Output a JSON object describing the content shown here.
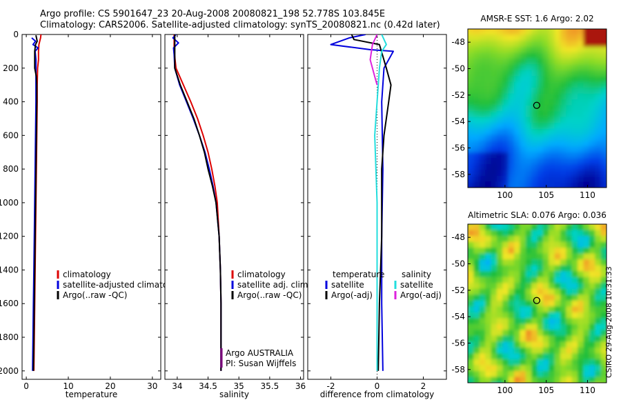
{
  "header": {
    "line1": "Argo profile: CS 5901647_23 20-Aug-2008 20080821_198 52.778S 103.845E",
    "line2": "Climatology: CARS2006. Satellite-adjusted climatology: synTS_20080821.nc (0.42d later)"
  },
  "stamp": "CSIRO 29-Aug-2008 10:31:33",
  "colors": {
    "red": "#dd0000",
    "blue": "#0000dd",
    "black": "#000000",
    "cyan": "#22dddd",
    "magenta": "#dd22dd"
  },
  "chart_data": [
    {
      "id": "temperature",
      "type": "line",
      "xlabel": "temperature",
      "xlim": [
        -1,
        32
      ],
      "xticks": [
        0,
        10,
        20,
        30
      ],
      "ylim": [
        2050,
        0
      ],
      "yticks": [
        0,
        200,
        400,
        600,
        800,
        1000,
        1200,
        1400,
        1600,
        1800,
        2000
      ],
      "legend": [
        "climatology",
        "satellite-adjusted climatology",
        "Argo(..raw -QC)"
      ],
      "legend_loc": "lower-center",
      "series": [
        {
          "name": "climatology",
          "color": "red",
          "points": [
            [
              3.5,
              0
            ],
            [
              3.4,
              20
            ],
            [
              3.0,
              60
            ],
            [
              2.9,
              100
            ],
            [
              2.9,
              150
            ],
            [
              2.7,
              200
            ],
            [
              2.6,
              300
            ],
            [
              2.6,
              400
            ],
            [
              2.5,
              600
            ],
            [
              2.4,
              800
            ],
            [
              2.3,
              1000
            ],
            [
              2.2,
              1200
            ],
            [
              2.1,
              1400
            ],
            [
              2.0,
              1600
            ],
            [
              1.9,
              1800
            ],
            [
              1.8,
              2000
            ]
          ]
        },
        {
          "name": "satellite-adjusted climatology",
          "color": "blue",
          "points": [
            [
              1.3,
              20
            ],
            [
              2.2,
              40
            ],
            [
              1.6,
              60
            ],
            [
              2.8,
              80
            ],
            [
              2.1,
              100
            ],
            [
              2.3,
              150
            ],
            [
              2.3,
              200
            ],
            [
              2.3,
              300
            ],
            [
              2.3,
              400
            ],
            [
              2.2,
              600
            ],
            [
              2.1,
              800
            ],
            [
              2.0,
              1000
            ],
            [
              1.9,
              1200
            ],
            [
              1.8,
              1400
            ],
            [
              1.7,
              1600
            ],
            [
              1.6,
              1800
            ],
            [
              1.5,
              2000
            ]
          ]
        },
        {
          "name": "Argo(..raw -QC)",
          "color": "black",
          "points": [
            [
              2.3,
              5
            ],
            [
              2.6,
              40
            ],
            [
              2.2,
              60
            ],
            [
              2.0,
              100
            ],
            [
              2.0,
              200
            ],
            [
              2.4,
              250
            ],
            [
              2.5,
              300
            ],
            [
              2.5,
              400
            ],
            [
              2.4,
              600
            ],
            [
              2.3,
              800
            ],
            [
              2.2,
              1000
            ],
            [
              2.1,
              1200
            ],
            [
              2.0,
              1400
            ],
            [
              1.9,
              1600
            ],
            [
              1.8,
              1800
            ],
            [
              1.7,
              2000
            ]
          ]
        }
      ]
    },
    {
      "id": "salinity",
      "type": "line",
      "xlabel": "salinity",
      "xlim": [
        33.8,
        36.05
      ],
      "xticks": [
        34,
        34.5,
        35,
        35.5,
        36
      ],
      "xtick_labels": [
        "34",
        "34.5",
        "35",
        "35.5",
        "36"
      ],
      "ylim": [
        2050,
        0
      ],
      "legend": [
        "climatology",
        "satellite adj. clim.",
        "Argo(..raw -QC)"
      ],
      "legend_loc": "lower-center",
      "annotations": [
        "Argo AUSTRALIA",
        "PI: Susan Wijffels"
      ],
      "series": [
        {
          "name": "climatology",
          "color": "red",
          "points": [
            [
              33.95,
              0
            ],
            [
              33.95,
              100
            ],
            [
              33.98,
              200
            ],
            [
              34.1,
              300
            ],
            [
              34.22,
              400
            ],
            [
              34.33,
              500
            ],
            [
              34.42,
              600
            ],
            [
              34.5,
              700
            ],
            [
              34.56,
              800
            ],
            [
              34.61,
              900
            ],
            [
              34.65,
              1000
            ],
            [
              34.68,
              1200
            ],
            [
              34.7,
              1400
            ],
            [
              34.71,
              1600
            ],
            [
              34.71,
              1800
            ],
            [
              34.71,
              2000
            ]
          ]
        },
        {
          "name": "satellite adj. clim.",
          "color": "blue",
          "points": [
            [
              33.98,
              0
            ],
            [
              33.93,
              20
            ],
            [
              34.02,
              50
            ],
            [
              33.94,
              80
            ],
            [
              33.95,
              120
            ],
            [
              33.96,
              200
            ],
            [
              34.04,
              300
            ],
            [
              34.15,
              400
            ],
            [
              34.26,
              500
            ],
            [
              34.36,
              600
            ],
            [
              34.45,
              700
            ],
            [
              34.52,
              800
            ],
            [
              34.58,
              900
            ],
            [
              34.63,
              1000
            ],
            [
              34.68,
              1200
            ],
            [
              34.7,
              1400
            ],
            [
              34.71,
              1600
            ],
            [
              34.71,
              1800
            ],
            [
              34.71,
              2000
            ]
          ]
        },
        {
          "name": "Argo(..raw -QC)",
          "color": "black",
          "points": [
            [
              33.96,
              0
            ],
            [
              33.96,
              100
            ],
            [
              33.96,
              200
            ],
            [
              34.05,
              300
            ],
            [
              34.16,
              400
            ],
            [
              34.27,
              500
            ],
            [
              34.36,
              600
            ],
            [
              34.44,
              700
            ],
            [
              34.5,
              800
            ],
            [
              34.57,
              900
            ],
            [
              34.63,
              1000
            ],
            [
              34.68,
              1200
            ],
            [
              34.7,
              1400
            ],
            [
              34.71,
              1600
            ],
            [
              34.71,
              1800
            ],
            [
              34.71,
              2000
            ]
          ]
        }
      ]
    },
    {
      "id": "difference",
      "type": "line",
      "xlabel": "difference from climatology",
      "xlim": [
        -3,
        3
      ],
      "xticks": [
        -2,
        0,
        2
      ],
      "ylim": [
        2050,
        0
      ],
      "legend": [
        "temperature",
        "satellite",
        "Argo(-adj)",
        "salinity",
        "satellite",
        "Argo(-adj)"
      ],
      "legend_loc": "lower-center",
      "series": [
        {
          "name": "temperature satellite",
          "color": "blue",
          "points": [
            [
              -0.5,
              0
            ],
            [
              -1.2,
              20
            ],
            [
              -2.0,
              60
            ],
            [
              -0.3,
              90
            ],
            [
              0.7,
              100
            ],
            [
              0.3,
              200
            ],
            [
              0.2,
              400
            ],
            [
              0.25,
              800
            ],
            [
              0.2,
              1200
            ],
            [
              0.2,
              1600
            ],
            [
              0.25,
              2000
            ]
          ]
        },
        {
          "name": "temperature Argo(-adj)",
          "color": "black",
          "points": [
            [
              -1.1,
              0
            ],
            [
              -1.0,
              30
            ],
            [
              0.1,
              60
            ],
            [
              0.4,
              200
            ],
            [
              0.6,
              300
            ],
            [
              0.5,
              400
            ],
            [
              0.3,
              600
            ],
            [
              0.2,
              800
            ],
            [
              0.2,
              1200
            ],
            [
              0.1,
              1600
            ],
            [
              0.05,
              2000
            ]
          ]
        },
        {
          "name": "salinity satellite",
          "color": "cyan",
          "points": [
            [
              0.2,
              0
            ],
            [
              0.4,
              60
            ],
            [
              0.2,
              100
            ],
            [
              0.1,
              200
            ],
            [
              0,
              400
            ],
            [
              -0.1,
              600
            ],
            [
              -0.05,
              800
            ],
            [
              0,
              1000
            ],
            [
              0,
              1400
            ],
            [
              0,
              1800
            ],
            [
              0,
              2000
            ]
          ]
        },
        {
          "name": "salinity Argo(-adj)",
          "color": "magenta",
          "points": [
            [
              0,
              0
            ],
            [
              -0.2,
              60
            ],
            [
              -0.3,
              150
            ],
            [
              -0.1,
              250
            ],
            [
              0,
              300
            ]
          ]
        }
      ]
    }
  ],
  "maps": [
    {
      "id": "sst",
      "title": "AMSR-E SST: 1.6 Argo: 2.02",
      "xticks": [
        100,
        105,
        110
      ],
      "yticks": [
        -48,
        -50,
        -52,
        -54,
        -56,
        -58
      ],
      "xlim": [
        95.5,
        112.3
      ],
      "ylim": [
        -59,
        -47
      ],
      "marker": [
        103.845,
        -52.778
      ]
    },
    {
      "id": "sla",
      "title": "Altimetric SLA: 0.076 Argo: 0.036",
      "xticks": [
        100,
        105,
        110
      ],
      "yticks": [
        -48,
        -50,
        -52,
        -54,
        -56,
        -58
      ],
      "xlim": [
        95.5,
        112.3
      ],
      "ylim": [
        -59,
        -47
      ],
      "marker": [
        103.845,
        -52.778
      ]
    }
  ]
}
